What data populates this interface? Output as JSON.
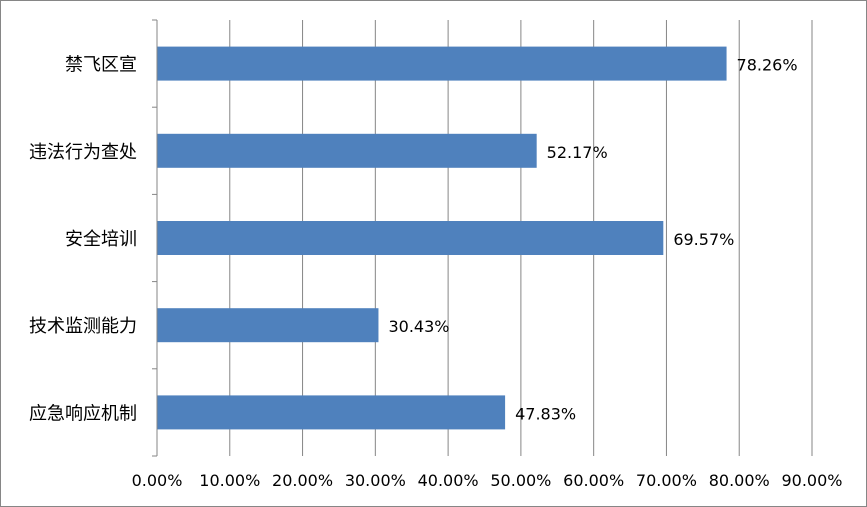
{
  "chart_data": {
    "type": "bar",
    "orientation": "horizontal",
    "title": "",
    "xlabel": "",
    "ylabel": "",
    "categories": [
      "禁飞区宣",
      "违法行为查处",
      "安全培训",
      "技术监测能力",
      "应急响应机制"
    ],
    "values": [
      78.26,
      52.17,
      69.57,
      30.43,
      47.83
    ],
    "value_labels": [
      "78.26%",
      "52.17%",
      "69.57%",
      "30.43%",
      "47.83%"
    ],
    "xlim": [
      0,
      90
    ],
    "xticks": [
      0,
      10,
      20,
      30,
      40,
      50,
      60,
      70,
      80,
      90
    ],
    "xtick_labels": [
      "0.00%",
      "10.00%",
      "20.00%",
      "30.00%",
      "40.00%",
      "50.00%",
      "60.00%",
      "70.00%",
      "80.00%",
      "90.00%"
    ],
    "grid": "vertical",
    "legend": "none",
    "colors": {
      "bar": "#4F81BD",
      "gridline": "#868686",
      "axis": "#868686",
      "border": "#868686"
    }
  }
}
